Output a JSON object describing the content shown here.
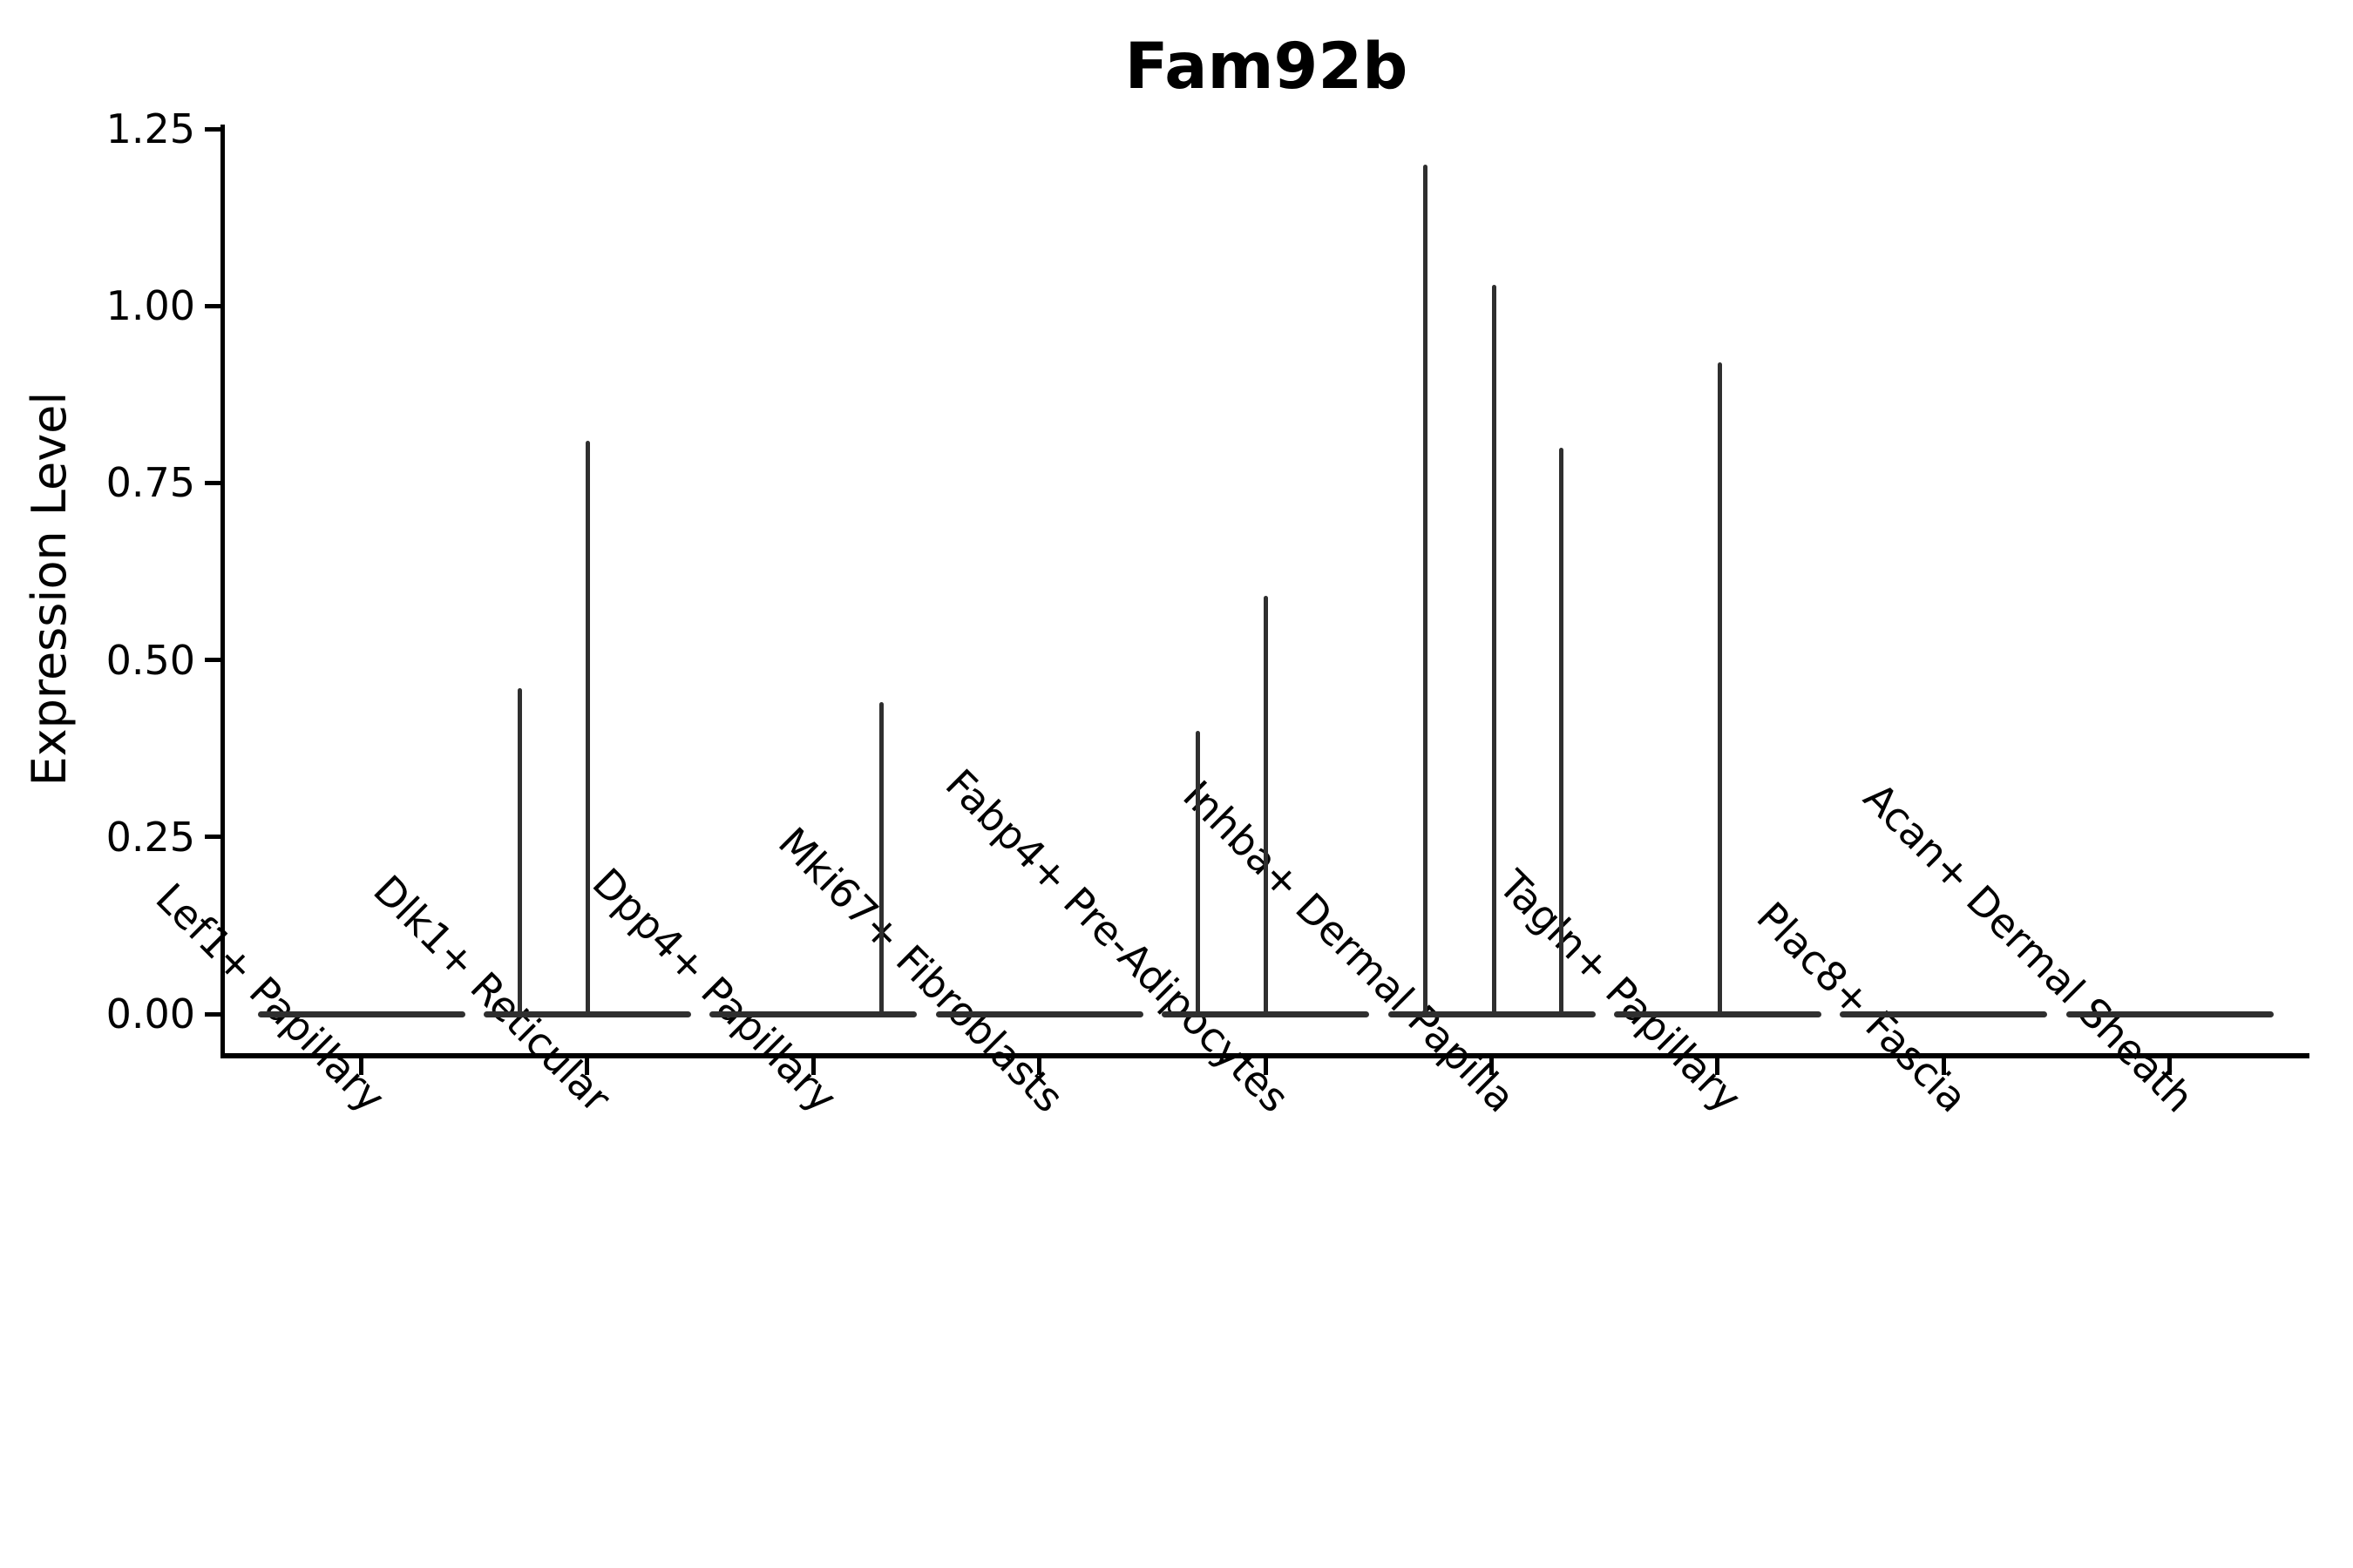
{
  "chart_data": {
    "type": "violin",
    "title": "Fam92b",
    "ylabel": "Expression Level",
    "xlabel": "",
    "ylim": [
      0,
      1.25
    ],
    "yticks": [
      0.0,
      0.25,
      0.5,
      0.75,
      1.0,
      1.25
    ],
    "ytick_labels": [
      "0.00",
      "0.25",
      "0.50",
      "0.75",
      "1.00",
      "1.25"
    ],
    "grid": false,
    "legend": false,
    "categories": [
      "Lef1+ Papillary",
      "Dlk1+ Reticular",
      "Dpp4+ Papillary",
      "Mki67+ Fibroblasts",
      "Fabp4+ Pre-Adipocytes",
      "Inhba+ Dermal Papilla",
      "Tagln+ Papillary",
      "Plac8+ Fascia",
      "Acan+ Dermal Sheath"
    ],
    "violins": [
      {
        "category": "Lef1+ Papillary",
        "baseline_value": 0,
        "spikes": []
      },
      {
        "category": "Dlk1+ Reticular",
        "baseline_value": 0,
        "spikes": [
          {
            "offset": -0.3,
            "value": 0.46
          },
          {
            "offset": 0.003,
            "value": 0.81
          }
        ]
      },
      {
        "category": "Dpp4+ Papillary",
        "baseline_value": 0,
        "spikes": [
          {
            "offset": 0.303,
            "value": 0.44
          }
        ]
      },
      {
        "category": "Mki67+ Fibroblasts",
        "baseline_value": 0,
        "spikes": []
      },
      {
        "category": "Fabp4+ Pre-Adipocytes",
        "baseline_value": 0,
        "spikes": [
          {
            "offset": -0.299,
            "value": 0.4
          },
          {
            "offset": 0.002,
            "value": 0.59
          }
        ]
      },
      {
        "category": "Inhba+ Dermal Papilla",
        "baseline_value": 0,
        "spikes": [
          {
            "offset": -0.294,
            "value": 1.2
          },
          {
            "offset": 0.01,
            "value": 1.03
          },
          {
            "offset": 0.307,
            "value": 0.8
          }
        ]
      },
      {
        "category": "Tagln+ Papillary",
        "baseline_value": 0,
        "spikes": [
          {
            "offset": 0.009,
            "value": 0.92
          }
        ]
      },
      {
        "category": "Plac8+ Fascia",
        "baseline_value": 0,
        "spikes": []
      },
      {
        "category": "Acan+ Dermal Sheath",
        "baseline_value": 0,
        "spikes": []
      }
    ],
    "colors": {
      "violin": "#2f2f2f",
      "axis": "#000000",
      "background": "#ffffff"
    }
  }
}
